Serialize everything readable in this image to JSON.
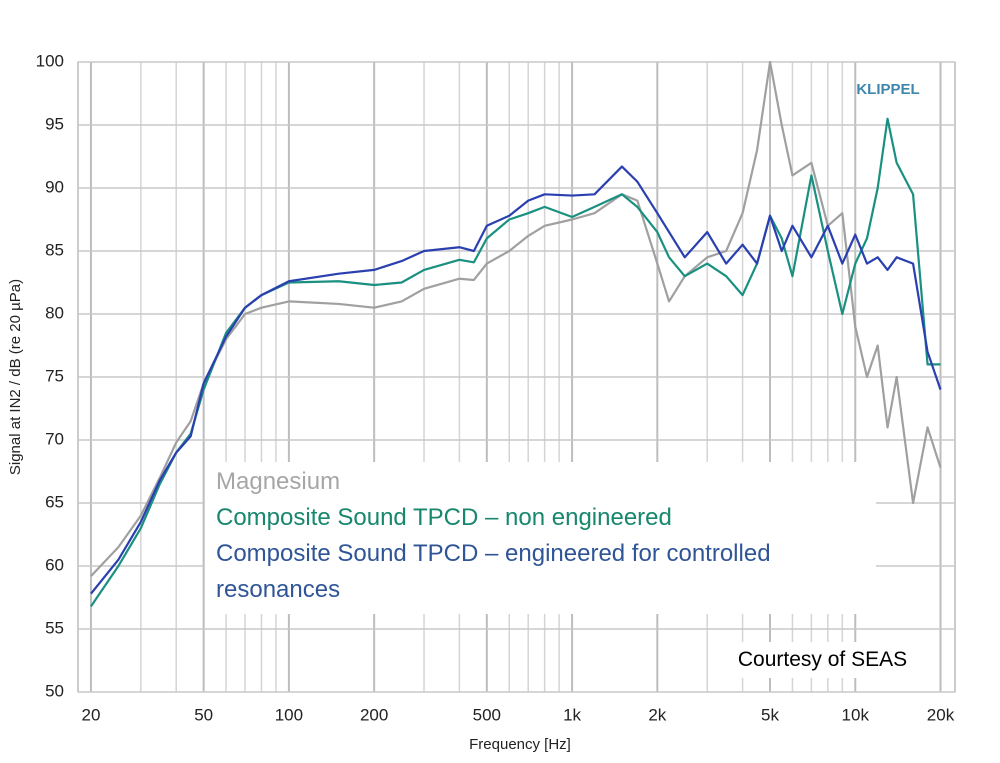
{
  "chart_data": {
    "type": "line",
    "x_scale": "log",
    "x_label": "Frequency [Hz]",
    "y_label": "Signal at IN2 / dB (re 20 µPa)",
    "annotations": [
      "KLIPPEL",
      "Courtesy of SEAS"
    ],
    "xlim": [
      18,
      22500
    ],
    "ylim": [
      50,
      100
    ],
    "xticks": [
      20,
      50,
      100,
      200,
      500,
      {
        "value": 1000,
        "label": "1k"
      },
      {
        "value": 2000,
        "label": "2k"
      },
      {
        "value": 5000,
        "label": "5k"
      },
      {
        "value": 10000,
        "label": "10k"
      },
      {
        "value": 20000,
        "label": "20k"
      }
    ],
    "x_minor_ticks": [
      30,
      40,
      60,
      70,
      80,
      90,
      300,
      400,
      600,
      700,
      800,
      900,
      3000,
      4000,
      6000,
      7000,
      8000,
      9000
    ],
    "yticks": [
      50,
      55,
      60,
      65,
      70,
      75,
      80,
      85,
      90,
      95,
      100
    ],
    "grid": true,
    "x": [
      20,
      25,
      30,
      35,
      40,
      45,
      50,
      60,
      70,
      80,
      100,
      150,
      200,
      250,
      300,
      400,
      450,
      500,
      600,
      700,
      800,
      1000,
      1200,
      1500,
      1700,
      2000,
      2200,
      2500,
      3000,
      3500,
      4000,
      4500,
      5000,
      5500,
      6000,
      7000,
      8000,
      9000,
      10000,
      11000,
      12000,
      13000,
      14000,
      16000,
      18000,
      20000
    ],
    "series": [
      {
        "name": "Magnesium",
        "color": "#a0a0a0",
        "label_color": "#a6a6a6",
        "values": [
          59.2,
          61.5,
          64,
          67,
          69.8,
          71.5,
          74.5,
          78,
          80,
          80.5,
          81,
          80.8,
          80.5,
          81,
          82,
          82.8,
          82.7,
          84,
          85,
          86.2,
          87,
          87.5,
          88,
          89.5,
          89,
          84,
          81,
          83,
          84.5,
          85,
          88,
          93,
          100,
          95,
          91,
          92,
          87,
          88,
          79,
          75,
          77.5,
          71,
          75,
          65,
          71,
          67.8
        ]
      },
      {
        "name": "Composite Sound TPCD – non engineered",
        "color": "#1a9080",
        "label_color": "#17876d",
        "values": [
          56.8,
          60,
          63,
          66.5,
          69,
          70.5,
          74,
          78.5,
          80.5,
          81.5,
          82.5,
          82.6,
          82.3,
          82.5,
          83.5,
          84.3,
          84.1,
          86,
          87.5,
          88,
          88.5,
          87.7,
          88.5,
          89.5,
          88.5,
          86.5,
          84.5,
          83,
          84,
          83,
          81.5,
          84,
          87.8,
          86,
          83,
          91,
          85,
          80,
          84,
          86,
          90,
          95.5,
          92,
          89.5,
          76,
          76
        ]
      },
      {
        "name": "Composite Sound TPCD – engineered for controlled resonances",
        "color": "#2a3fb0",
        "label_color": "#2f5597",
        "values": [
          57.8,
          60.5,
          63.5,
          66.8,
          69,
          70.3,
          74.5,
          78.2,
          80.5,
          81.5,
          82.6,
          83.2,
          83.5,
          84.2,
          85,
          85.3,
          85,
          87,
          87.8,
          89,
          89.5,
          89.4,
          89.5,
          91.7,
          90.5,
          88,
          86.5,
          84.5,
          86.5,
          84,
          85.5,
          84,
          87.8,
          85,
          87,
          84.5,
          87,
          84,
          86.3,
          84,
          84.5,
          83.5,
          84.5,
          84,
          77,
          74
        ]
      }
    ]
  }
}
